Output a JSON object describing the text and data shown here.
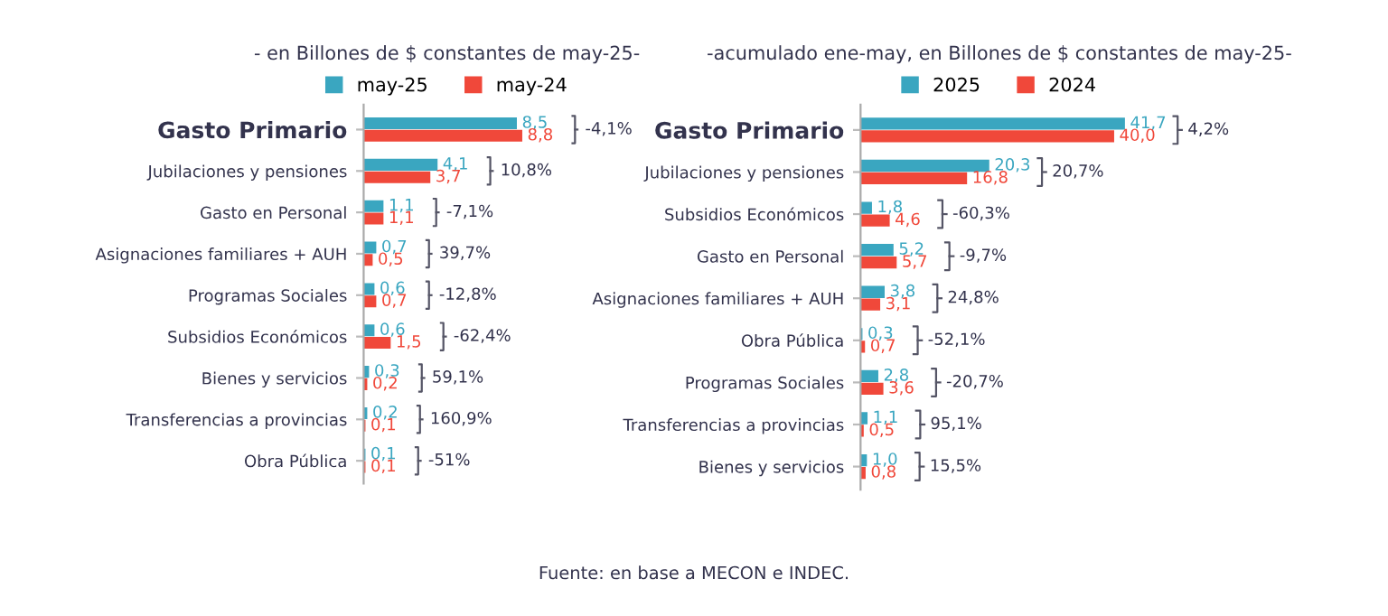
{
  "chart_data": [
    {
      "type": "bar",
      "orientation": "horizontal",
      "title": "- en Billones de $ constantes de may-25-",
      "legend": "top",
      "tick_labels": "y",
      "categories": [
        "Gasto Primario",
        "Jubilaciones y pensiones",
        "Gasto en Personal",
        "Asignaciones familiares + AUH",
        "Programas Sociales",
        "Subsidios Económicos",
        "Bienes y servicios",
        "Transferencias a provincias",
        "Obra Pública"
      ],
      "series": [
        {
          "name": "may-25",
          "color": "#3aa6c0",
          "values": [
            8.5,
            4.1,
            1.1,
            0.7,
            0.6,
            0.6,
            0.3,
            0.2,
            0.1
          ],
          "value_labels": [
            "8,5",
            "4,1",
            "1,1",
            "0,7",
            "0,6",
            "0,6",
            "0,3",
            "0,2",
            "0,1"
          ]
        },
        {
          "name": "may-24",
          "color": "#f0483a",
          "values": [
            8.8,
            3.7,
            1.1,
            0.5,
            0.7,
            1.5,
            0.2,
            0.1,
            0.1
          ],
          "value_labels": [
            "8,8",
            "3,7",
            "1,1",
            "0,5",
            "0,7",
            "1,5",
            "0,2",
            "0,1",
            "0,1"
          ]
        }
      ],
      "annotations": [
        "-4,1%",
        "10,8%",
        "-7,1%",
        "39,7%",
        "-12,8%",
        "-62,4%",
        "59,1%",
        "160,9%",
        "-51%"
      ]
    },
    {
      "type": "bar",
      "orientation": "horizontal",
      "title": "-acumulado ene-may, en Billones de $ constantes de may-25-",
      "legend": "top",
      "tick_labels": "y",
      "categories": [
        "Gasto Primario",
        "Jubilaciones y pensiones",
        "Subsidios Económicos",
        "Gasto en Personal",
        "Asignaciones familiares + AUH",
        "Obra Pública",
        "Programas Sociales",
        "Transferencias a provincias",
        "Bienes y servicios"
      ],
      "series": [
        {
          "name": "2025",
          "color": "#3aa6c0",
          "values": [
            41.7,
            20.3,
            1.8,
            5.2,
            3.8,
            0.3,
            2.8,
            1.1,
            1.0
          ],
          "value_labels": [
            "41,7",
            "20,3",
            "1,8",
            "5,2",
            "3,8",
            "0,3",
            "2,8",
            "1,1",
            "1,0"
          ]
        },
        {
          "name": "2024",
          "color": "#f0483a",
          "values": [
            40.0,
            16.8,
            4.6,
            5.7,
            3.1,
            0.7,
            3.6,
            0.5,
            0.8
          ],
          "value_labels": [
            "40,0",
            "16,8",
            "4,6",
            "5,7",
            "3,1",
            "0,7",
            "3,6",
            "0,5",
            "0,8"
          ]
        }
      ],
      "annotations": [
        "4,2%",
        "20,7%",
        "-60,3%",
        "-9,7%",
        "24,8%",
        "-52,1%",
        "-20,7%",
        "95,1%",
        "15,5%",
        "Fuente: en base a MECON e INDEC."
      ]
    }
  ]
}
